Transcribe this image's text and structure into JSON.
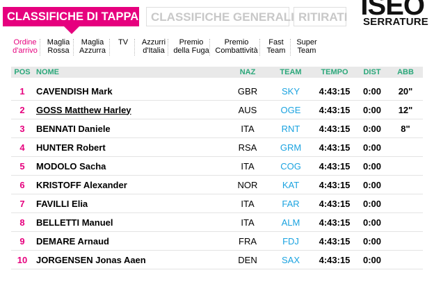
{
  "tabs": [
    {
      "label": "CLASSIFICHE DI TAPPA",
      "active": true
    },
    {
      "label": "CLASSIFICHE GENERALI",
      "active": false
    },
    {
      "label": "RITIRATI",
      "active": false
    }
  ],
  "logo": {
    "line1": "ISEO",
    "line2": "SERRATURE"
  },
  "subtabs": [
    {
      "line1": "Ordine",
      "line2": "d'arrivo",
      "active": true
    },
    {
      "line1": "Maglia",
      "line2": "Rossa",
      "active": false
    },
    {
      "line1": "Maglia",
      "line2": "Azzurra",
      "active": false
    },
    {
      "line1": "TV",
      "line2": "",
      "active": false
    },
    {
      "line1": "Azzurri",
      "line2": "d'Italia",
      "active": false
    },
    {
      "line1": "Premio",
      "line2": "della Fuga",
      "active": false
    },
    {
      "line1": "Premio",
      "line2": "Combattività",
      "active": false
    },
    {
      "line1": "Fast",
      "line2": "Team",
      "active": false
    },
    {
      "line1": "Super",
      "line2": "Team",
      "active": false
    }
  ],
  "table": {
    "headers": {
      "pos": "POS",
      "name": "NOME",
      "naz": "NAZ",
      "team": "TEAM",
      "tempo": "TEMPO",
      "dist": "DIST",
      "abb": "ABB"
    },
    "rows": [
      {
        "pos": "1",
        "name": "CAVENDISH Mark",
        "naz": "GBR",
        "team": "SKY",
        "tempo": "4:43:15",
        "dist": "0:00",
        "abb": "20\""
      },
      {
        "pos": "2",
        "name": "GOSS Matthew Harley",
        "naz": "AUS",
        "team": "OGE",
        "tempo": "4:43:15",
        "dist": "0:00",
        "abb": "12\""
      },
      {
        "pos": "3",
        "name": "BENNATI Daniele",
        "naz": "ITA",
        "team": "RNT",
        "tempo": "4:43:15",
        "dist": "0:00",
        "abb": "8\""
      },
      {
        "pos": "4",
        "name": "HUNTER Robert",
        "naz": "RSA",
        "team": "GRM",
        "tempo": "4:43:15",
        "dist": "0:00",
        "abb": ""
      },
      {
        "pos": "5",
        "name": "MODOLO Sacha",
        "naz": "ITA",
        "team": "COG",
        "tempo": "4:43:15",
        "dist": "0:00",
        "abb": ""
      },
      {
        "pos": "6",
        "name": "KRISTOFF Alexander",
        "naz": "NOR",
        "team": "KAT",
        "tempo": "4:43:15",
        "dist": "0:00",
        "abb": ""
      },
      {
        "pos": "7",
        "name": "FAVILLI Elia",
        "naz": "ITA",
        "team": "FAR",
        "tempo": "4:43:15",
        "dist": "0:00",
        "abb": ""
      },
      {
        "pos": "8",
        "name": "BELLETTI Manuel",
        "naz": "ITA",
        "team": "ALM",
        "tempo": "4:43:15",
        "dist": "0:00",
        "abb": ""
      },
      {
        "pos": "9",
        "name": "DEMARE Arnaud",
        "naz": "FRA",
        "team": "FDJ",
        "tempo": "4:43:15",
        "dist": "0:00",
        "abb": ""
      },
      {
        "pos": "10",
        "name": "JORGENSEN Jonas Aaen",
        "naz": "DEN",
        "team": "SAX",
        "tempo": "4:43:15",
        "dist": "0:00",
        "abb": ""
      }
    ]
  },
  "colors": {
    "accent": "#e6007e",
    "header_text": "#2ca87b",
    "team_link": "#1ba3e0"
  }
}
